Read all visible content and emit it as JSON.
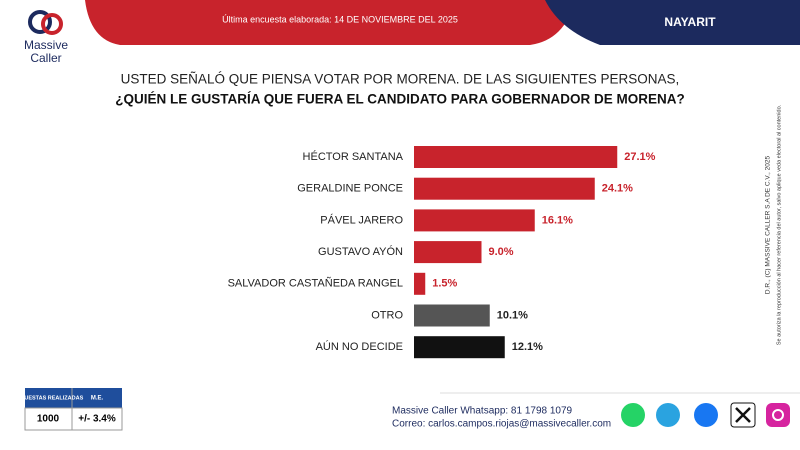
{
  "logo": {
    "line1": "Massive",
    "line2": "Caller"
  },
  "header": {
    "survey_date": "Última encuesta elaborada: 14 DE NOVIEMBRE DEL 2025",
    "region": "NAYARIT"
  },
  "chart_data": {
    "type": "bar",
    "orientation": "horizontal",
    "title": "USTED SEÑALÓ QUE PIENSA VOTAR POR MORENA. DE LAS SIGUIENTES PERSONAS,",
    "subtitle": "¿QUIÉN LE GUSTARÍA QUE FUERA EL CANDIDATO PARA GOBERNADOR DE MORENA?",
    "categories": [
      "HÉCTOR SANTANA",
      "GERALDINE PONCE",
      "PÁVEL JARERO",
      "GUSTAVO AYÓN",
      "SALVADOR CASTAÑEDA RANGEL",
      "OTRO",
      "AÚN NO DECIDE"
    ],
    "values": [
      27.1,
      24.1,
      16.1,
      9.0,
      1.5,
      10.1,
      12.1
    ],
    "value_labels": [
      "27.1%",
      "24.1%",
      "16.1%",
      "9.0%",
      "1.5%",
      "10.1%",
      "12.1%"
    ],
    "colors": [
      "#c8232c",
      "#c8232c",
      "#c8232c",
      "#c8232c",
      "#c8232c",
      "#555555",
      "#111111"
    ]
  },
  "table": {
    "headers": [
      "ENCUESTAS REALIZADAS",
      "M.E."
    ],
    "row": [
      "1000",
      "+/- 3.4%"
    ]
  },
  "footer": {
    "whatsapp": "Massive Caller Whatsapp: 81 1798 1079",
    "email": "Correo: carlos.campos.riojas@massivecaller.com"
  },
  "copyright": {
    "line1": "D.R., (C) MASSIVE CALLER S.A DE C.V., 2025",
    "line2": "Se autoriza la reproducción al hacer referencia del autor, salvo aplique veda electoral al contenido."
  }
}
